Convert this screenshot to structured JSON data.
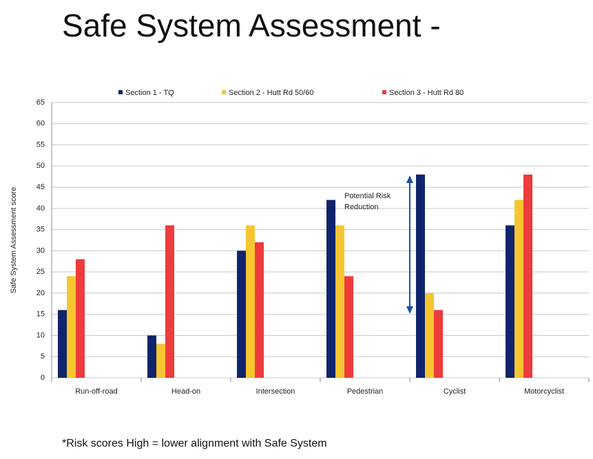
{
  "chart_data": {
    "type": "bar",
    "title": "Safe System Assessment -",
    "y_label": "Safe System Assessment score",
    "categories": [
      "Run-off-road",
      "Head-on",
      "Intersection",
      "Pedestrian",
      "Cyclist",
      "Motorcyclist"
    ],
    "series": [
      {
        "name": "Section 1 - TQ",
        "color": "#10246b",
        "values": [
          16,
          10,
          30,
          42,
          48,
          36
        ]
      },
      {
        "name": "Section 2 - Hutt Rd 50/60",
        "color": "#f7c531",
        "values": [
          24,
          8,
          36,
          36,
          20,
          42
        ]
      },
      {
        "name": "Section 3 - Hutt Rd 80",
        "color": "#ee3b3b",
        "values": [
          28,
          36,
          32,
          24,
          16,
          48
        ]
      }
    ],
    "ylim": [
      0,
      65
    ],
    "yticks": [
      0,
      5,
      10,
      15,
      20,
      25,
      30,
      35,
      40,
      45,
      50,
      55,
      60,
      65
    ],
    "grid": true,
    "annotation": "Potential Risk Reduction",
    "footnote": "*Risk scores High = lower alignment with Safe System"
  }
}
